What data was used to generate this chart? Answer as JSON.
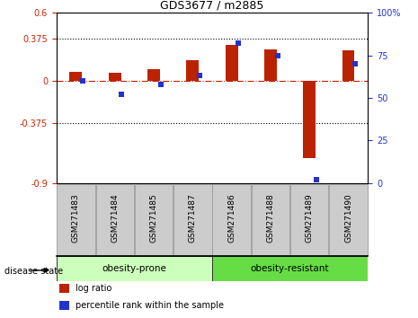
{
  "title": "GDS3677 / m2885",
  "samples": [
    "GSM271483",
    "GSM271484",
    "GSM271485",
    "GSM271487",
    "GSM271486",
    "GSM271488",
    "GSM271489",
    "GSM271490"
  ],
  "log_ratio": [
    0.08,
    0.07,
    0.1,
    0.18,
    0.32,
    0.28,
    -0.68,
    0.27
  ],
  "percentile": [
    60,
    52,
    58,
    63,
    82,
    75,
    2,
    70
  ],
  "ylim_left": [
    -0.9,
    0.6
  ],
  "ylim_right": [
    0,
    100
  ],
  "yticks_left": [
    -0.9,
    -0.375,
    0,
    0.375,
    0.6
  ],
  "yticks_right": [
    0,
    25,
    50,
    75,
    100
  ],
  "hlines": [
    0.375,
    -0.375
  ],
  "bar_color": "#bb2200",
  "dot_color": "#2233cc",
  "bar_width": 0.32,
  "groups": [
    {
      "label": "obesity-prone",
      "indices": [
        0,
        1,
        2,
        3
      ],
      "light_color": "#ccffbb",
      "dark_color": "#88ee66"
    },
    {
      "label": "obesity-resistant",
      "indices": [
        4,
        5,
        6,
        7
      ],
      "light_color": "#66dd44",
      "dark_color": "#44bb22"
    }
  ],
  "group_label": "disease state",
  "legend_items": [
    {
      "label": "log ratio",
      "color": "#bb2200"
    },
    {
      "label": "percentile rank within the sample",
      "color": "#2233cc"
    }
  ],
  "tick_label_color_left": "#cc2200",
  "tick_label_color_right": "#2233cc",
  "bg_color": "#ffffff",
  "xlabel_box_color": "#cccccc",
  "xlabel_box_border": "#999999"
}
